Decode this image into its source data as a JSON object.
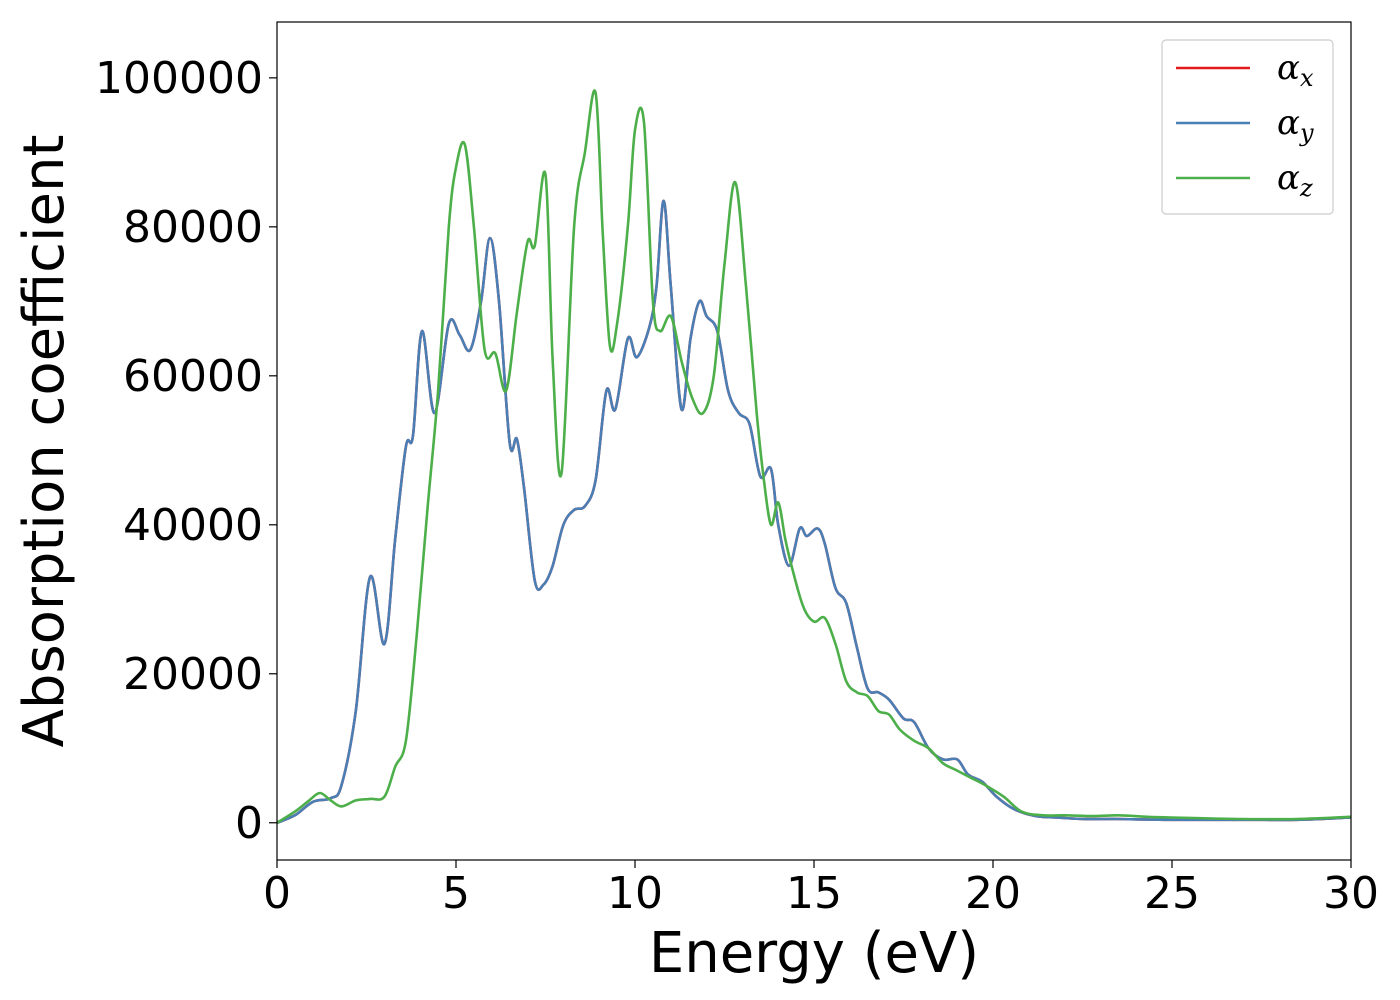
{
  "chart_data": {
    "type": "line",
    "title": "",
    "xlabel": "Energy (eV)",
    "ylabel": "Absorption coefficient",
    "xlim": [
      0,
      30
    ],
    "ylim": [
      -5000,
      107500
    ],
    "xticks": [
      0,
      5,
      10,
      15,
      20,
      25,
      30
    ],
    "xtick_labels": [
      "0",
      "5",
      "10",
      "15",
      "20",
      "25",
      "30"
    ],
    "yticks": [
      0,
      20000,
      40000,
      60000,
      80000,
      100000
    ],
    "ytick_labels": [
      "0",
      "20000",
      "40000",
      "60000",
      "80000",
      "100000"
    ],
    "grid": false,
    "legend_position": "top-right",
    "series": [
      {
        "name": "α",
        "subscript": "x",
        "color": "#e41a1c",
        "x": [
          0,
          0.5,
          1.0,
          1.5,
          1.8,
          2.2,
          2.6,
          3.0,
          3.3,
          3.6,
          3.8,
          4.05,
          4.4,
          4.8,
          5.1,
          5.4,
          5.7,
          5.95,
          6.2,
          6.5,
          6.7,
          6.9,
          7.2,
          7.45,
          7.7,
          8.0,
          8.3,
          8.6,
          8.9,
          9.2,
          9.45,
          9.8,
          10.05,
          10.4,
          10.6,
          10.8,
          11.0,
          11.3,
          11.55,
          11.8,
          12.0,
          12.3,
          12.6,
          12.9,
          13.2,
          13.5,
          13.8,
          14.0,
          14.3,
          14.6,
          14.8,
          15.1,
          15.3,
          15.6,
          15.9,
          16.2,
          16.5,
          16.8,
          17.1,
          17.5,
          17.8,
          18.2,
          18.6,
          19.0,
          19.3,
          19.7,
          20.1,
          20.6,
          21.2,
          21.8,
          22.5,
          23.5,
          25.0,
          27.0,
          28.5,
          30.0
        ],
        "y": [
          0,
          1000,
          2800,
          3300,
          5000,
          15000,
          33000,
          24000,
          38000,
          50500,
          52000,
          66000,
          55000,
          67000,
          65500,
          63500,
          70000,
          78500,
          70000,
          51000,
          51500,
          45000,
          32500,
          32000,
          34500,
          40000,
          42000,
          42500,
          46000,
          58000,
          55500,
          65000,
          62500,
          66500,
          72000,
          83500,
          72000,
          55500,
          65000,
          70000,
          68000,
          66000,
          58000,
          55000,
          53500,
          46500,
          47500,
          40000,
          34500,
          39500,
          38500,
          39500,
          37500,
          31500,
          29500,
          23500,
          18000,
          17500,
          16500,
          14000,
          13500,
          10000,
          8500,
          8500,
          6500,
          5500,
          3500,
          1800,
          900,
          700,
          500,
          500,
          400,
          400,
          400,
          700
        ]
      },
      {
        "name": "α",
        "subscript": "y",
        "color": "#4a7fb5",
        "x": [
          0,
          0.5,
          1.0,
          1.5,
          1.8,
          2.2,
          2.6,
          3.0,
          3.3,
          3.6,
          3.8,
          4.05,
          4.4,
          4.8,
          5.1,
          5.4,
          5.7,
          5.95,
          6.2,
          6.5,
          6.7,
          6.9,
          7.2,
          7.45,
          7.7,
          8.0,
          8.3,
          8.6,
          8.9,
          9.2,
          9.45,
          9.8,
          10.05,
          10.4,
          10.6,
          10.8,
          11.0,
          11.3,
          11.55,
          11.8,
          12.0,
          12.3,
          12.6,
          12.9,
          13.2,
          13.5,
          13.8,
          14.0,
          14.3,
          14.6,
          14.8,
          15.1,
          15.3,
          15.6,
          15.9,
          16.2,
          16.5,
          16.8,
          17.1,
          17.5,
          17.8,
          18.2,
          18.6,
          19.0,
          19.3,
          19.7,
          20.1,
          20.6,
          21.2,
          21.8,
          22.5,
          23.5,
          25.0,
          27.0,
          28.5,
          30.0
        ],
        "y": [
          0,
          1000,
          2800,
          3300,
          5000,
          15000,
          33000,
          24000,
          38000,
          50500,
          52000,
          66000,
          55000,
          67000,
          65500,
          63500,
          70000,
          78500,
          70000,
          51000,
          51500,
          45000,
          32500,
          32000,
          34500,
          40000,
          42000,
          42500,
          46000,
          58000,
          55500,
          65000,
          62500,
          66500,
          72000,
          83500,
          72000,
          55500,
          65000,
          70000,
          68000,
          66000,
          58000,
          55000,
          53500,
          46500,
          47500,
          40000,
          34500,
          39500,
          38500,
          39500,
          37500,
          31500,
          29500,
          23500,
          18000,
          17500,
          16500,
          14000,
          13500,
          10000,
          8500,
          8500,
          6500,
          5500,
          3500,
          1800,
          900,
          700,
          500,
          500,
          400,
          400,
          400,
          700
        ]
      },
      {
        "name": "α",
        "subscript": "z",
        "color": "#4daf4a",
        "x": [
          0,
          0.5,
          0.9,
          1.2,
          1.5,
          1.8,
          2.2,
          2.6,
          3.0,
          3.3,
          3.6,
          3.9,
          4.2,
          4.5,
          4.8,
          5.0,
          5.25,
          5.5,
          5.8,
          6.1,
          6.4,
          6.7,
          7.0,
          7.2,
          7.5,
          7.7,
          7.95,
          8.3,
          8.6,
          8.9,
          9.1,
          9.3,
          9.5,
          9.8,
          10.0,
          10.25,
          10.5,
          10.7,
          11.0,
          11.3,
          11.6,
          11.9,
          12.2,
          12.5,
          12.8,
          13.1,
          13.4,
          13.6,
          13.8,
          14.0,
          14.2,
          14.4,
          14.7,
          15.0,
          15.3,
          15.6,
          15.9,
          16.2,
          16.5,
          16.8,
          17.1,
          17.4,
          17.8,
          18.2,
          18.6,
          19.0,
          19.4,
          19.8,
          20.3,
          20.8,
          21.4,
          22.0,
          22.8,
          23.5,
          24.3,
          25.0,
          27.0,
          28.5,
          30.0
        ],
        "y": [
          0,
          1500,
          3000,
          4000,
          3000,
          2200,
          3000,
          3200,
          3500,
          7500,
          11000,
          25000,
          42000,
          58000,
          80000,
          88000,
          91000,
          80000,
          63500,
          63000,
          58000,
          68500,
          78000,
          77500,
          87000,
          62000,
          47000,
          80000,
          90000,
          98000,
          79000,
          64000,
          67000,
          80000,
          93000,
          94000,
          70000,
          66000,
          68000,
          62000,
          57000,
          55000,
          60000,
          75000,
          86000,
          72000,
          55000,
          46000,
          40000,
          43000,
          38000,
          34000,
          29000,
          27000,
          27500,
          24000,
          19000,
          17500,
          17000,
          15000,
          14500,
          12500,
          11000,
          10000,
          8000,
          7000,
          6000,
          5000,
          3500,
          1500,
          1000,
          1000,
          900,
          1000,
          800,
          700,
          500,
          500,
          800
        ]
      }
    ]
  }
}
